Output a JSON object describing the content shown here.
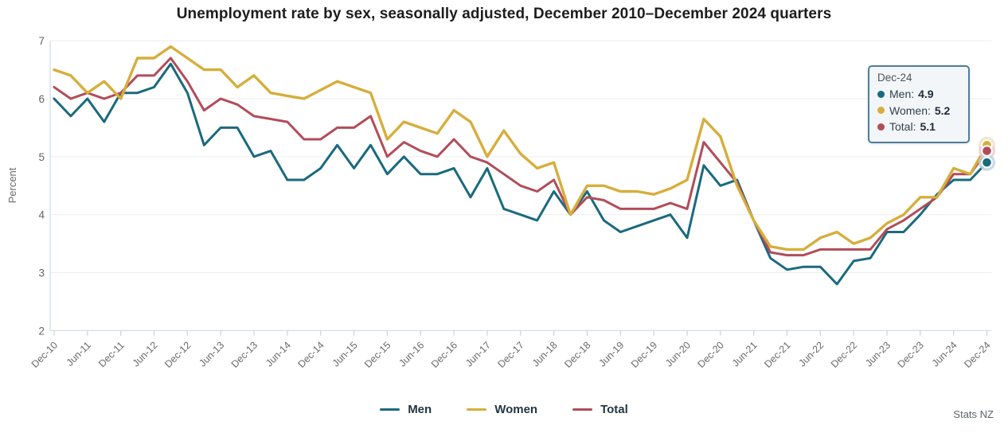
{
  "title": "Unemployment rate by sex, seasonally adjusted, December 2010–December 2024 quarters",
  "source": "Stats NZ",
  "y_axis": {
    "label": "Percent",
    "ticks": [
      "7",
      "6",
      "5",
      "4",
      "3",
      "2"
    ]
  },
  "x_axis": {
    "tick_labels": [
      "Dec-10",
      "Jun-11",
      "Dec-11",
      "Jun-12",
      "Dec-12",
      "Jun-13",
      "Dec-13",
      "Jun-14",
      "Dec-14",
      "Jun-15",
      "Dec-15",
      "Jun-16",
      "Dec-16",
      "Jun-17",
      "Dec-17",
      "Jun-18",
      "Dec-18",
      "Jun-19",
      "Dec-19",
      "Jun-20",
      "Dec-20",
      "Jun-21",
      "Dec-21",
      "Jun-22",
      "Dec-22",
      "Jun-23",
      "Dec-23",
      "Jun-24",
      "Dec-24"
    ]
  },
  "legend": {
    "items": [
      {
        "id": "men",
        "label": "Men"
      },
      {
        "id": "women",
        "label": "Women"
      },
      {
        "id": "total",
        "label": "Total"
      }
    ]
  },
  "tooltip": {
    "heading": "Dec-24",
    "rows": [
      {
        "series": "men",
        "label": "Men:",
        "value": "4.9"
      },
      {
        "series": "women",
        "label": "Women:",
        "value": "5.2"
      },
      {
        "series": "total",
        "label": "Total:",
        "value": "5.1"
      }
    ]
  },
  "colors": {
    "men": "#1a6a7e",
    "women": "#d6ae3c",
    "total": "#b14d59",
    "men_halo": "#bdd4de",
    "women_halo": "#f0e2c2",
    "total_halo": "#ecccd0",
    "grid": "#ededed",
    "axis_border": "#cfdce7",
    "tick": "#c6d4e1",
    "axis_text": "#6a6a6a",
    "tooltip_border": "#4e7d9b"
  },
  "chart_data": {
    "type": "line",
    "title": "Unemployment rate by sex, seasonally adjusted, December 2010–December 2024 quarters",
    "xlabel": "",
    "ylabel": "Percent",
    "ylim": [
      2,
      7
    ],
    "x_interval": "quarterly",
    "x_start": "Dec-2010",
    "x_end": "Dec-2024",
    "grid": "horizontal",
    "legend_position": "bottom",
    "categories_shown_on_axis": [
      "Dec-10",
      "Jun-11",
      "Dec-11",
      "Jun-12",
      "Dec-12",
      "Jun-13",
      "Dec-13",
      "Jun-14",
      "Dec-14",
      "Jun-15",
      "Dec-15",
      "Jun-16",
      "Dec-16",
      "Jun-17",
      "Dec-17",
      "Jun-18",
      "Dec-18",
      "Jun-19",
      "Dec-19",
      "Jun-20",
      "Dec-20",
      "Jun-21",
      "Dec-21",
      "Jun-22",
      "Dec-22",
      "Jun-23",
      "Dec-23",
      "Jun-24",
      "Dec-24"
    ],
    "series": [
      {
        "name": "Men",
        "values": [
          6.0,
          5.7,
          6.0,
          5.6,
          6.1,
          6.1,
          6.2,
          6.6,
          6.1,
          5.2,
          5.5,
          5.5,
          5.0,
          5.1,
          4.6,
          4.6,
          4.8,
          5.2,
          4.8,
          5.2,
          4.7,
          5.0,
          4.7,
          4.7,
          4.8,
          4.3,
          4.8,
          4.1,
          4.0,
          3.9,
          4.4,
          4.0,
          4.4,
          3.9,
          3.7,
          3.8,
          3.9,
          4.0,
          3.6,
          4.85,
          4.5,
          4.6,
          3.9,
          3.25,
          3.05,
          3.1,
          3.1,
          2.8,
          3.2,
          3.25,
          3.7,
          3.7,
          4.0,
          4.35,
          4.6,
          4.6,
          4.9
        ]
      },
      {
        "name": "Women",
        "values": [
          6.5,
          6.4,
          6.1,
          6.3,
          6.0,
          6.7,
          6.7,
          6.9,
          6.7,
          6.5,
          6.5,
          6.2,
          6.4,
          6.1,
          6.05,
          6.0,
          6.15,
          6.3,
          6.2,
          6.1,
          5.3,
          5.6,
          5.5,
          5.4,
          5.8,
          5.6,
          5.0,
          5.45,
          5.05,
          4.8,
          4.9,
          4.0,
          4.5,
          4.5,
          4.4,
          4.4,
          4.35,
          4.45,
          4.6,
          5.65,
          5.35,
          4.5,
          3.9,
          3.45,
          3.4,
          3.4,
          3.6,
          3.7,
          3.5,
          3.6,
          3.85,
          4.0,
          4.3,
          4.3,
          4.8,
          4.7,
          5.2
        ]
      },
      {
        "name": "Total",
        "values": [
          6.2,
          6.0,
          6.1,
          6.0,
          6.1,
          6.4,
          6.4,
          6.7,
          6.3,
          5.8,
          6.0,
          5.9,
          5.7,
          5.65,
          5.6,
          5.3,
          5.3,
          5.5,
          5.5,
          5.7,
          5.0,
          5.25,
          5.1,
          5.0,
          5.3,
          5.0,
          4.9,
          4.7,
          4.5,
          4.4,
          4.6,
          4.0,
          4.3,
          4.25,
          4.1,
          4.1,
          4.1,
          4.2,
          4.1,
          5.25,
          4.9,
          4.55,
          3.9,
          3.35,
          3.3,
          3.3,
          3.4,
          3.4,
          3.4,
          3.4,
          3.75,
          3.9,
          4.1,
          4.3,
          4.7,
          4.7,
          5.1
        ]
      }
    ],
    "highlighted_point": {
      "x": "Dec-24",
      "Men": 4.9,
      "Women": 5.2,
      "Total": 5.1
    }
  }
}
